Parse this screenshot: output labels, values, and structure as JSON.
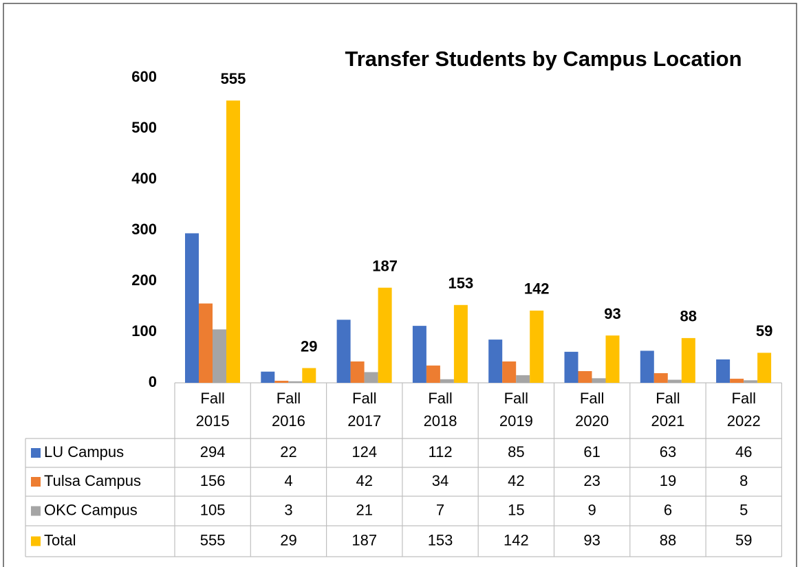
{
  "chart_data": {
    "type": "bar",
    "title": "Transfer Students by Campus Location",
    "categories": [
      "Fall 2015",
      "Fall 2016",
      "Fall 2017",
      "Fall 2018",
      "Fall 2019",
      "Fall 2020",
      "Fall 2021",
      "Fall 2022"
    ],
    "series": [
      {
        "name": "LU Campus",
        "color": "#4472c4",
        "values": [
          294,
          22,
          124,
          112,
          85,
          61,
          63,
          46
        ]
      },
      {
        "name": "Tulsa Campus",
        "color": "#ed7d31",
        "values": [
          156,
          4,
          42,
          34,
          42,
          23,
          19,
          8
        ]
      },
      {
        "name": "OKC Campus",
        "color": "#a5a5a5",
        "values": [
          105,
          3,
          21,
          7,
          15,
          9,
          6,
          5
        ]
      },
      {
        "name": "Total",
        "color": "#ffc000",
        "values": [
          555,
          29,
          187,
          153,
          142,
          93,
          88,
          59
        ]
      }
    ],
    "ylim": [
      0,
      600
    ],
    "yticks": [
      0,
      100,
      200,
      300,
      400,
      500,
      600
    ],
    "data_labels_series": "Total"
  }
}
